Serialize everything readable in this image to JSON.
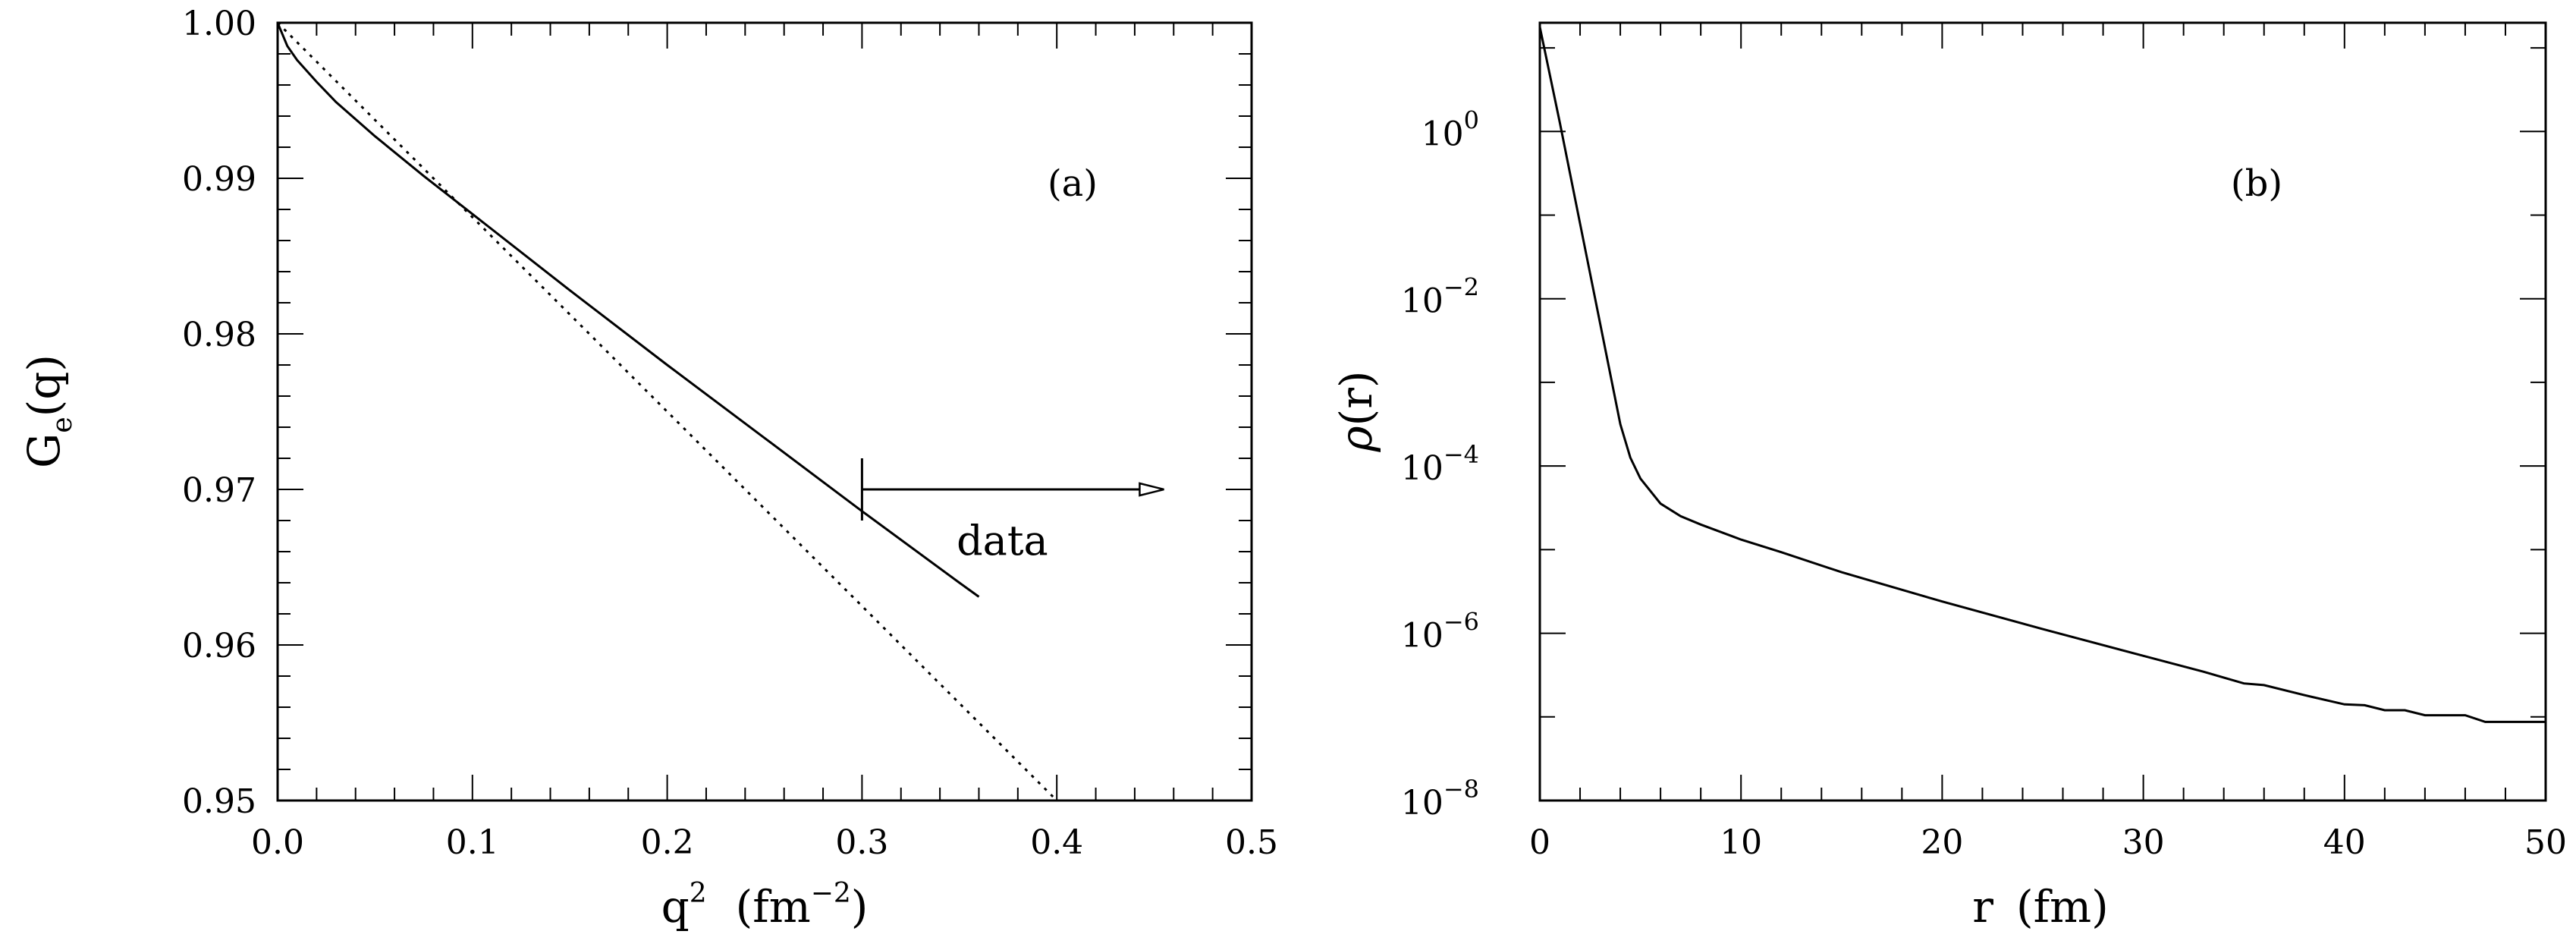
{
  "chart_data": [
    {
      "type": "line",
      "panel_label": "(a)",
      "xlabel": "q",
      "xlabel_sup": "2",
      "xlabel_units": "(fm",
      "xlabel_units_sup": "−2",
      "xlabel_units_close": ")",
      "ylabel": "G",
      "ylabel_sub": "e",
      "ylabel_tail": "(q)",
      "xlim": [
        0.0,
        0.5
      ],
      "ylim": [
        0.95,
        1.0
      ],
      "x_ticks": [
        "0.0",
        "0.1",
        "0.2",
        "0.3",
        "0.4",
        "0.5"
      ],
      "y_ticks": [
        "0.95",
        "0.96",
        "0.97",
        "0.98",
        "0.99",
        "1.00"
      ],
      "series": [
        {
          "name": "solid",
          "style": "solid",
          "x": [
            0.0,
            0.005,
            0.01,
            0.02,
            0.03,
            0.05,
            0.075,
            0.1,
            0.15,
            0.2,
            0.25,
            0.3,
            0.35,
            0.36
          ],
          "y": [
            1.0,
            0.9985,
            0.9976,
            0.9962,
            0.9949,
            0.9927,
            0.99015,
            0.9877,
            0.9828,
            0.978,
            0.9733,
            0.9686,
            0.964,
            0.9631
          ]
        },
        {
          "name": "dotted",
          "style": "dotted",
          "x": [
            0.0,
            0.4
          ],
          "y": [
            1.0,
            0.95
          ]
        }
      ],
      "annotation": {
        "text": "data",
        "x_start": 0.3,
        "x_end": 0.455,
        "y": 0.97,
        "bar_half_height": 0.002
      }
    },
    {
      "type": "line",
      "panel_label": "(b)",
      "xlabel": "r",
      "xlabel_units": "(fm)",
      "ylabel": "ρ",
      "ylabel_tail": "(r)",
      "yscale": "log",
      "xlim": [
        0,
        50
      ],
      "ylim_log10": [
        -8,
        1.3
      ],
      "x_ticks": [
        "0",
        "10",
        "20",
        "30",
        "40",
        "50"
      ],
      "y_ticks": [
        {
          "base": "10",
          "exp": "0"
        },
        {
          "base": "10",
          "exp": "−2"
        },
        {
          "base": "10",
          "exp": "−4"
        },
        {
          "base": "10",
          "exp": "−6"
        },
        {
          "base": "10",
          "exp": "−8"
        }
      ],
      "series": [
        {
          "name": "density",
          "style": "solid",
          "x": [
            0,
            1,
            2,
            3,
            4,
            4.5,
            5,
            6,
            7,
            8,
            10,
            12,
            15,
            20,
            25,
            30,
            33,
            35,
            36,
            38,
            40,
            41,
            42,
            43,
            44,
            45,
            46,
            47,
            48,
            50
          ],
          "y_log10": [
            1.25,
            0.1,
            -1.1,
            -2.3,
            -3.5,
            -3.9,
            -4.15,
            -4.45,
            -4.6,
            -4.7,
            -4.88,
            -5.03,
            -5.27,
            -5.62,
            -5.95,
            -6.27,
            -6.46,
            -6.6,
            -6.62,
            -6.74,
            -6.85,
            -6.86,
            -6.92,
            -6.92,
            -6.98,
            -6.98,
            -6.98,
            -7.06,
            -7.06,
            -7.06
          ]
        }
      ]
    }
  ]
}
